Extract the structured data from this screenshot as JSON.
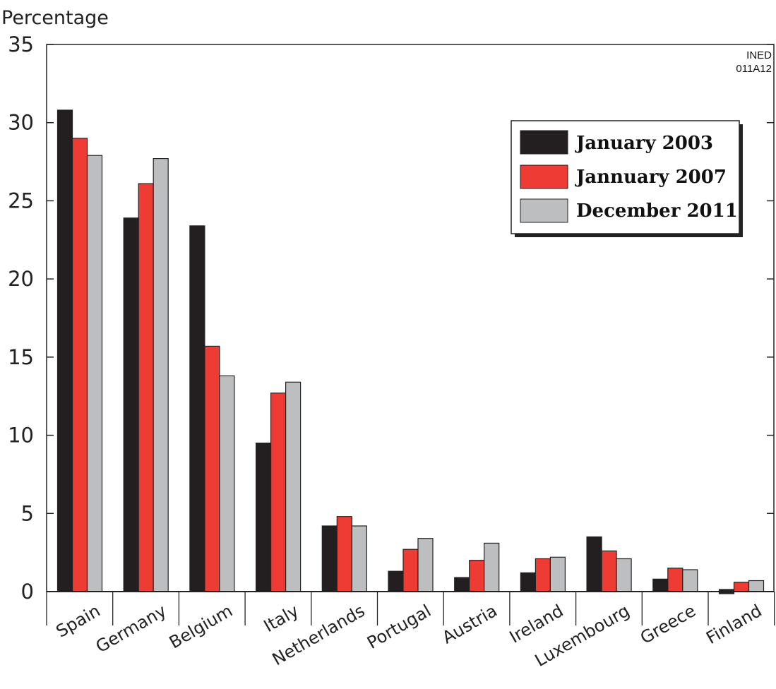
{
  "chart_data": {
    "type": "bar",
    "ylabel": "Percentage",
    "ylim": [
      0,
      35
    ],
    "yticks": [
      0,
      5,
      10,
      15,
      20,
      25,
      30,
      35
    ],
    "source_label": [
      "INED",
      "011A12"
    ],
    "legend_position": "top-right",
    "grid": false,
    "categories": [
      "Spain",
      "Germany",
      "Belgium",
      "Italy",
      "Netherlands",
      "Portugal",
      "Austria",
      "Ireland",
      "Luxembourg",
      "Greece",
      "Finland"
    ],
    "series": [
      {
        "name": "January 2003",
        "color": "#231f20",
        "values": [
          30.8,
          23.9,
          23.4,
          9.5,
          4.2,
          1.3,
          0.9,
          1.2,
          3.5,
          0.8,
          0.2
        ]
      },
      {
        "name": "Jannuary 2007",
        "color": "#ee3b33",
        "values": [
          29.0,
          26.1,
          15.7,
          12.7,
          4.8,
          2.7,
          2.0,
          2.1,
          2.6,
          1.5,
          0.6
        ]
      },
      {
        "name": "December 2011",
        "color": "#bcbec0",
        "values": [
          27.9,
          27.7,
          13.8,
          13.4,
          4.2,
          3.4,
          3.1,
          2.2,
          2.1,
          1.4,
          0.7
        ]
      }
    ]
  }
}
